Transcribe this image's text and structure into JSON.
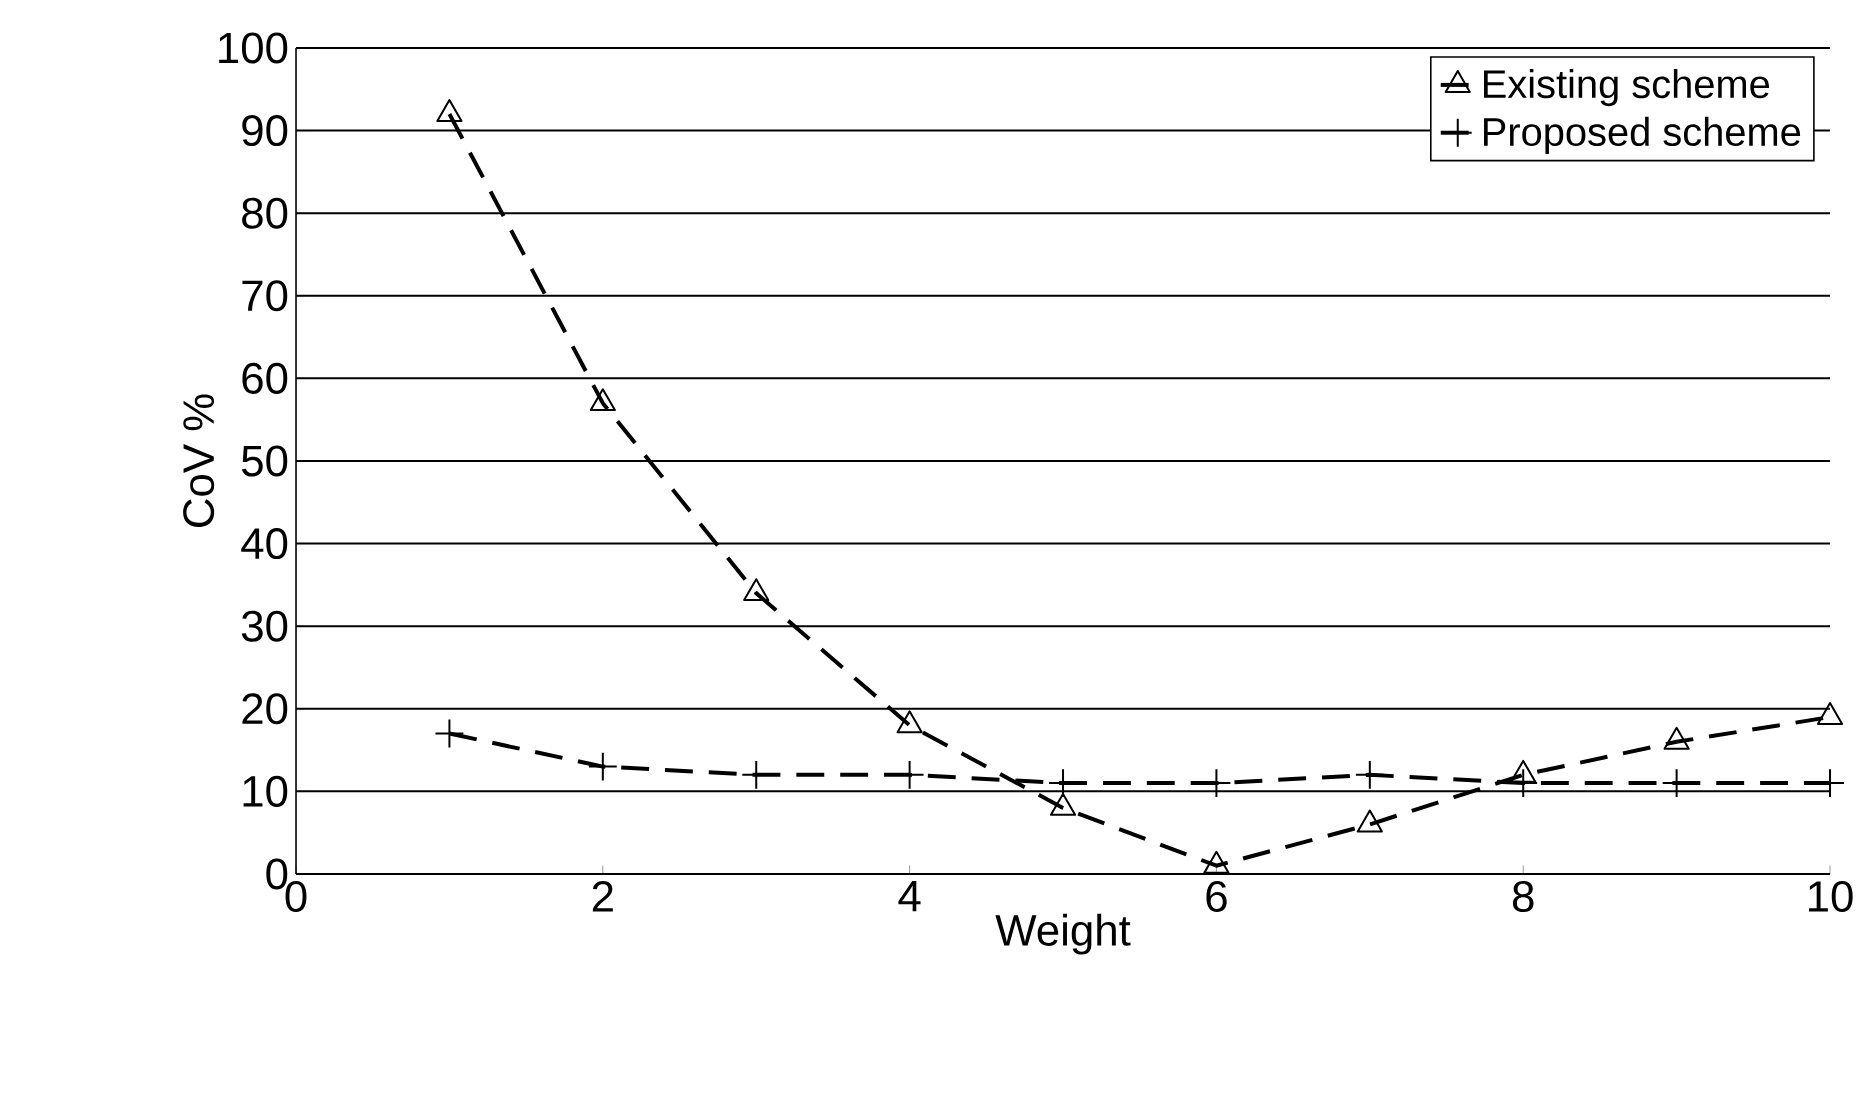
{
  "chart_data": {
    "type": "line",
    "xlabel": "Weight",
    "ylabel": "CoV %",
    "x": [
      1,
      2,
      3,
      4,
      5,
      6,
      7,
      8,
      9,
      10
    ],
    "series": [
      {
        "name": "Existing scheme",
        "color": "#000000",
        "marker": "triangle",
        "line_style": "dashed",
        "values": [
          92,
          57,
          34,
          18,
          8,
          1,
          6,
          12,
          16,
          19
        ]
      },
      {
        "name": "Proposed scheme",
        "color": "#000000",
        "marker": "cross",
        "line_style": "dashed",
        "values": [
          17,
          13,
          12,
          12,
          11,
          11,
          12,
          11,
          11,
          11
        ]
      }
    ],
    "xlim": [
      0,
      10
    ],
    "xticks": [
      0,
      2,
      4,
      6,
      8,
      10
    ],
    "ylim": [
      0,
      100
    ],
    "yticks": [
      0,
      10,
      20,
      30,
      40,
      50,
      60,
      70,
      80,
      90,
      100
    ],
    "grid": "y",
    "legend": "top right"
  }
}
